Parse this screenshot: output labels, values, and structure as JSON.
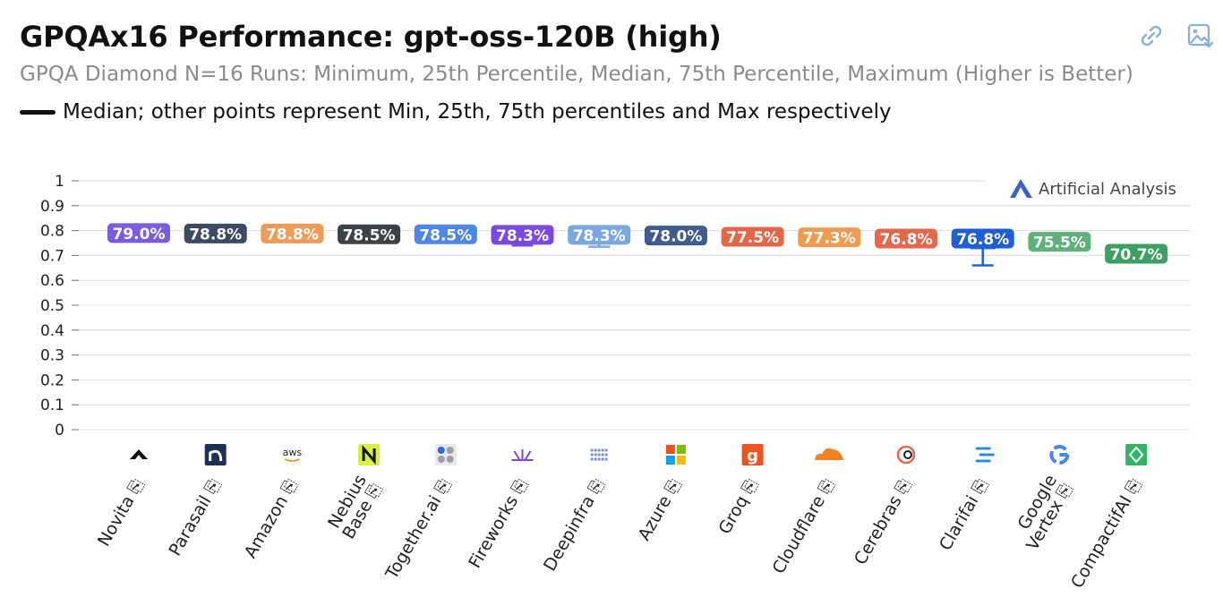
{
  "header": {
    "title": "GPQAx16 Performance: gpt-oss-120B (high)",
    "subtitle": "GPQA Diamond N=16 Runs: Minimum, 25th Percentile, Median, 75th Percentile, Maximum (Higher is Better)",
    "legend": "Median; other points represent Min, 25th, 75th percentiles and Max respectively"
  },
  "toolbar": {
    "link_icon": "link-icon",
    "image_icon": "image-download-icon"
  },
  "watermark": "Artificial Analysis",
  "chart_data": {
    "type": "box",
    "ylim": [
      0,
      1
    ],
    "yticks": [
      "0",
      "0.1",
      "0.2",
      "0.3",
      "0.4",
      "0.5",
      "0.6",
      "0.7",
      "0.8",
      "0.9",
      "1"
    ],
    "grid": true,
    "series": [
      {
        "name": "Novita",
        "label": "79.0%",
        "median": 0.79,
        "min": 0.765,
        "q1": 0.775,
        "q3": 0.8,
        "max": 0.805,
        "color": "#7b5be0"
      },
      {
        "name": "Parasail",
        "label": "78.8%",
        "median": 0.788,
        "min": 0.77,
        "q1": 0.778,
        "q3": 0.795,
        "max": 0.8,
        "color": "#3c4a63"
      },
      {
        "name": "Amazon",
        "label": "78.8%",
        "median": 0.788,
        "min": 0.772,
        "q1": 0.78,
        "q3": 0.795,
        "max": 0.8,
        "color": "#ef9b55"
      },
      {
        "name": "Nebius Base",
        "label": "78.5%",
        "median": 0.785,
        "min": 0.76,
        "q1": 0.772,
        "q3": 0.795,
        "max": 0.8,
        "color": "#3d4148"
      },
      {
        "name": "Together.ai",
        "label": "78.5%",
        "median": 0.785,
        "min": 0.765,
        "q1": 0.775,
        "q3": 0.795,
        "max": 0.8,
        "color": "#4c86e8"
      },
      {
        "name": "Fireworks",
        "label": "78.3%",
        "median": 0.783,
        "min": 0.74,
        "q1": 0.76,
        "q3": 0.8,
        "max": 0.805,
        "color": "#7b48e0"
      },
      {
        "name": "Deepinfra",
        "label": "78.3%",
        "median": 0.783,
        "min": 0.735,
        "q1": 0.76,
        "q3": 0.805,
        "max": 0.815,
        "color": "#7aa7e0"
      },
      {
        "name": "Azure",
        "label": "78.0%",
        "median": 0.78,
        "min": 0.765,
        "q1": 0.772,
        "q3": 0.79,
        "max": 0.795,
        "color": "#3f5c8c"
      },
      {
        "name": "Groq",
        "label": "77.5%",
        "median": 0.775,
        "min": 0.76,
        "q1": 0.768,
        "q3": 0.782,
        "max": 0.79,
        "color": "#e56548"
      },
      {
        "name": "Cloudflare",
        "label": "77.3%",
        "median": 0.773,
        "min": 0.76,
        "q1": 0.766,
        "q3": 0.78,
        "max": 0.786,
        "color": "#f09a4f"
      },
      {
        "name": "Cerebras",
        "label": "76.8%",
        "median": 0.768,
        "min": 0.755,
        "q1": 0.76,
        "q3": 0.775,
        "max": 0.78,
        "color": "#e5684d"
      },
      {
        "name": "Clarifai",
        "label": "76.8%",
        "median": 0.768,
        "min": 0.66,
        "q1": 0.725,
        "q3": 0.79,
        "max": 0.8,
        "color": "#1f5fd6"
      },
      {
        "name": "Google Vertex",
        "label": "75.5%",
        "median": 0.755,
        "min": 0.725,
        "q1": 0.74,
        "q3": 0.768,
        "max": 0.775,
        "color": "#5fb07a"
      },
      {
        "name": "CompactifAI",
        "label": "70.7%",
        "median": 0.707,
        "min": 0.695,
        "q1": 0.7,
        "q3": 0.715,
        "max": 0.72,
        "color": "#3da062"
      }
    ],
    "provider_icons": [
      "novita-logo-icon",
      "parasail-logo-icon",
      "aws-logo-icon",
      "nebius-logo-icon",
      "together-logo-icon",
      "fireworks-logo-icon",
      "deepinfra-logo-icon",
      "azure-logo-icon",
      "groq-logo-icon",
      "cloudflare-logo-icon",
      "cerebras-logo-icon",
      "clarifai-logo-icon",
      "google-logo-icon",
      "compactifai-logo-icon"
    ]
  }
}
